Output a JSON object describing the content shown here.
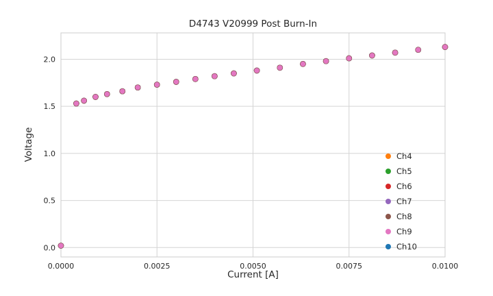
{
  "chart_data": {
    "type": "scatter",
    "title": "D4743 V20999 Post Burn-In",
    "xlabel": "Current [A]",
    "ylabel": "Voltage",
    "xlim": [
      0.0,
      0.01
    ],
    "ylim": [
      -0.1,
      2.28
    ],
    "grid": true,
    "legend_position": "lower right",
    "xticks": {
      "values": [
        0.0,
        0.0025,
        0.005,
        0.0075,
        0.01
      ],
      "labels": [
        "0.0000",
        "0.0025",
        "0.0050",
        "0.0075",
        "0.0100"
      ]
    },
    "yticks": {
      "values": [
        0.0,
        0.5,
        1.0,
        1.5,
        2.0
      ],
      "labels": [
        "0.0",
        "0.5",
        "1.0",
        "1.5",
        "2.0"
      ]
    },
    "x": [
      0.0,
      0.0004,
      0.0006,
      0.0009,
      0.0012,
      0.0016,
      0.002,
      0.0025,
      0.003,
      0.0035,
      0.004,
      0.0045,
      0.0051,
      0.0057,
      0.0063,
      0.0069,
      0.0075,
      0.0081,
      0.0087,
      0.0093,
      0.01
    ],
    "series": [
      {
        "name": "Ch4",
        "color": "#ff7f0e",
        "values": [
          0.02,
          1.53,
          1.56,
          1.6,
          1.63,
          1.66,
          1.7,
          1.73,
          1.76,
          1.79,
          1.82,
          1.85,
          1.88,
          1.91,
          1.95,
          1.98,
          2.01,
          2.04,
          2.07,
          2.1,
          2.13
        ]
      },
      {
        "name": "Ch5",
        "color": "#2ca02c",
        "values": [
          0.02,
          1.53,
          1.56,
          1.6,
          1.63,
          1.66,
          1.7,
          1.73,
          1.76,
          1.79,
          1.82,
          1.85,
          1.88,
          1.91,
          1.95,
          1.98,
          2.01,
          2.04,
          2.07,
          2.1,
          2.13
        ]
      },
      {
        "name": "Ch6",
        "color": "#d62728",
        "values": [
          0.02,
          1.53,
          1.56,
          1.6,
          1.63,
          1.66,
          1.7,
          1.73,
          1.76,
          1.79,
          1.82,
          1.85,
          1.88,
          1.91,
          1.95,
          1.98,
          2.01,
          2.04,
          2.07,
          2.1,
          2.13
        ]
      },
      {
        "name": "Ch10",
        "color": "#1f77b4",
        "values": [
          0.02,
          1.53,
          1.56,
          1.6,
          1.63,
          1.66,
          1.7,
          1.73,
          1.76,
          1.79,
          1.82,
          1.85,
          1.88,
          1.91,
          1.95,
          1.98,
          2.01,
          2.04,
          2.07,
          2.1,
          2.13
        ]
      },
      {
        "name": "Ch7",
        "color": "#9467bd",
        "values": [
          0.02,
          1.53,
          1.56,
          1.6,
          1.63,
          1.66,
          1.7,
          1.73,
          1.76,
          1.79,
          1.82,
          1.85,
          1.88,
          1.91,
          1.95,
          1.98,
          2.01,
          2.04,
          2.07,
          2.1,
          2.13
        ]
      },
      {
        "name": "Ch8",
        "color": "#8c564b",
        "values": [
          0.02,
          1.53,
          1.56,
          1.6,
          1.63,
          1.66,
          1.7,
          1.73,
          1.76,
          1.79,
          1.82,
          1.85,
          1.88,
          1.91,
          1.95,
          1.98,
          2.01,
          2.04,
          2.07,
          2.1,
          2.13
        ]
      },
      {
        "name": "Ch9",
        "color": "#e377c2",
        "values": [
          0.02,
          1.53,
          1.56,
          1.6,
          1.63,
          1.66,
          1.7,
          1.73,
          1.76,
          1.79,
          1.82,
          1.85,
          1.88,
          1.91,
          1.95,
          1.98,
          2.01,
          2.04,
          2.07,
          2.1,
          2.13
        ]
      }
    ],
    "legend": [
      {
        "label": "Ch4",
        "color": "#ff7f0e"
      },
      {
        "label": "Ch5",
        "color": "#2ca02c"
      },
      {
        "label": "Ch6",
        "color": "#d62728"
      },
      {
        "label": "Ch7",
        "color": "#9467bd"
      },
      {
        "label": "Ch8",
        "color": "#8c564b"
      },
      {
        "label": "Ch9",
        "color": "#e377c2"
      },
      {
        "label": "Ch10",
        "color": "#1f77b4"
      }
    ]
  },
  "colors": {
    "grid": "#d4d4d4",
    "axes_border": "#cccccc",
    "text": "#262626",
    "background": "#ffffff"
  }
}
